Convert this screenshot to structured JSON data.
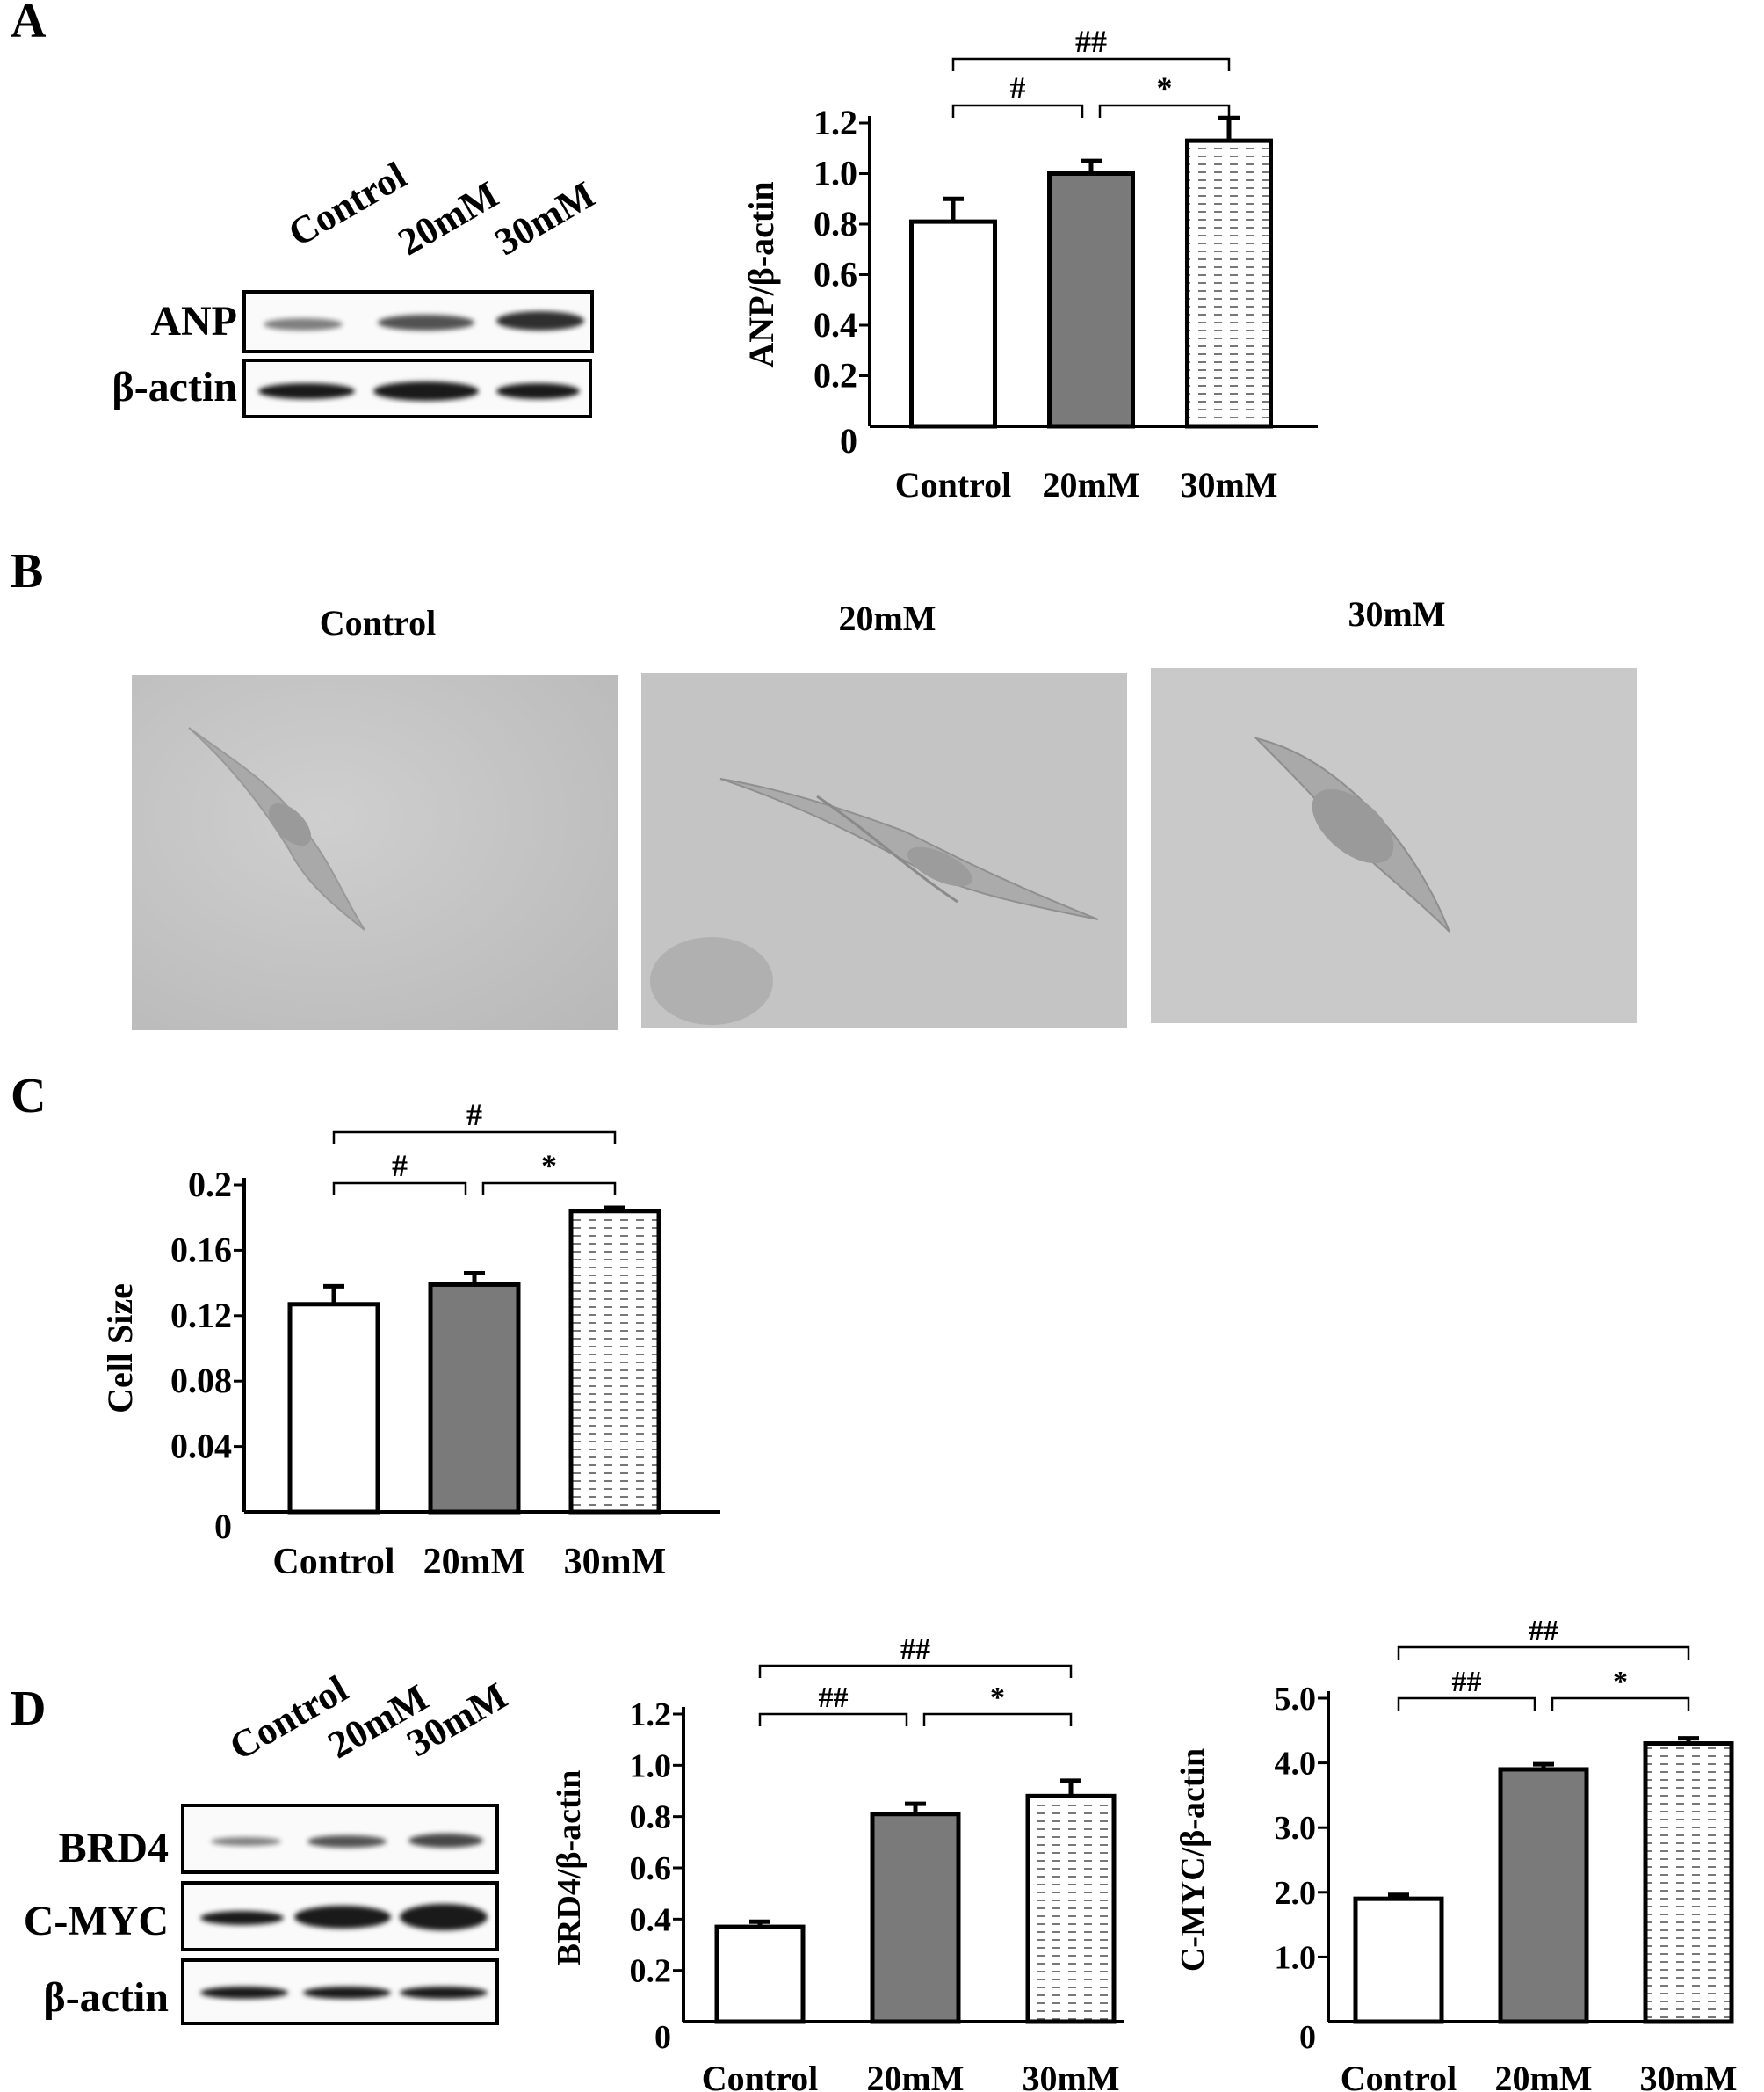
{
  "panels": {
    "a": "A",
    "b": "B",
    "c": "C",
    "d": "D"
  },
  "blot_a": {
    "lanes": [
      "Control",
      "20mM",
      "30mM"
    ],
    "rows": [
      "ANP",
      "β-actin"
    ]
  },
  "micrographs": {
    "titles": [
      "Control",
      "20mM",
      "30mM"
    ]
  },
  "blot_d": {
    "lanes": [
      "Control",
      "20mM",
      "30mM"
    ],
    "rows": [
      "BRD4",
      "C-MYC",
      "β-actin"
    ]
  },
  "chart_data": [
    {
      "id": "A",
      "type": "bar",
      "categories": [
        "Control",
        "20mM",
        "30mM"
      ],
      "values": [
        0.81,
        1.0,
        1.13
      ],
      "errors": [
        0.09,
        0.05,
        0.09
      ],
      "ylabel": "ANP/β-actin",
      "ylim": [
        0,
        1.2
      ],
      "yticks": [
        "0",
        "0.2",
        "0.4",
        "0.6",
        "0.8",
        "1.0",
        "1.2"
      ],
      "fills": [
        "white",
        "#7a7a7a",
        "dashed"
      ],
      "significance": [
        {
          "from": 0,
          "to": 2,
          "label": "##"
        },
        {
          "from": 0,
          "to": 1,
          "label": "#"
        },
        {
          "from": 1,
          "to": 2,
          "label": "*"
        }
      ]
    },
    {
      "id": "C",
      "type": "bar",
      "categories": [
        "Control",
        "20mM",
        "30mM"
      ],
      "values": [
        0.127,
        0.139,
        0.184
      ],
      "errors": [
        0.011,
        0.007,
        0.002
      ],
      "ylabel": "Cell Size",
      "ylim": [
        0,
        0.2
      ],
      "yticks": [
        "0",
        "0.04",
        "0.08",
        "0.12",
        "0.16",
        "0.2"
      ],
      "fills": [
        "white",
        "#7a7a7a",
        "dashed"
      ],
      "significance": [
        {
          "from": 0,
          "to": 2,
          "label": "#"
        },
        {
          "from": 0,
          "to": 1,
          "label": "#"
        },
        {
          "from": 1,
          "to": 2,
          "label": "*"
        }
      ]
    },
    {
      "id": "D-BRD4",
      "type": "bar",
      "categories": [
        "Control",
        "20mM",
        "30mM"
      ],
      "values": [
        0.37,
        0.81,
        0.88
      ],
      "errors": [
        0.02,
        0.04,
        0.06
      ],
      "ylabel": "BRD4/β-actin",
      "ylim": [
        0,
        1.2
      ],
      "yticks": [
        "0",
        "0.2",
        "0.4",
        "0.6",
        "0.8",
        "1.0",
        "1.2"
      ],
      "fills": [
        "white",
        "#7a7a7a",
        "dashed"
      ],
      "significance": [
        {
          "from": 0,
          "to": 2,
          "label": "##"
        },
        {
          "from": 0,
          "to": 1,
          "label": "##"
        },
        {
          "from": 1,
          "to": 2,
          "label": "*"
        }
      ]
    },
    {
      "id": "D-CMYC",
      "type": "bar",
      "categories": [
        "Control",
        "20mM",
        "30mM"
      ],
      "values": [
        1.9,
        3.9,
        4.3
      ],
      "errors": [
        0.06,
        0.08,
        0.08
      ],
      "ylabel": "C-MYC/β-actin",
      "ylim": [
        0,
        5.0
      ],
      "yticks": [
        "0",
        "1.0",
        "2.0",
        "3.0",
        "4.0",
        "5.0"
      ],
      "fills": [
        "white",
        "#7a7a7a",
        "dashed"
      ],
      "significance": [
        {
          "from": 0,
          "to": 2,
          "label": "##"
        },
        {
          "from": 0,
          "to": 1,
          "label": "##"
        },
        {
          "from": 1,
          "to": 2,
          "label": "*"
        }
      ]
    }
  ]
}
